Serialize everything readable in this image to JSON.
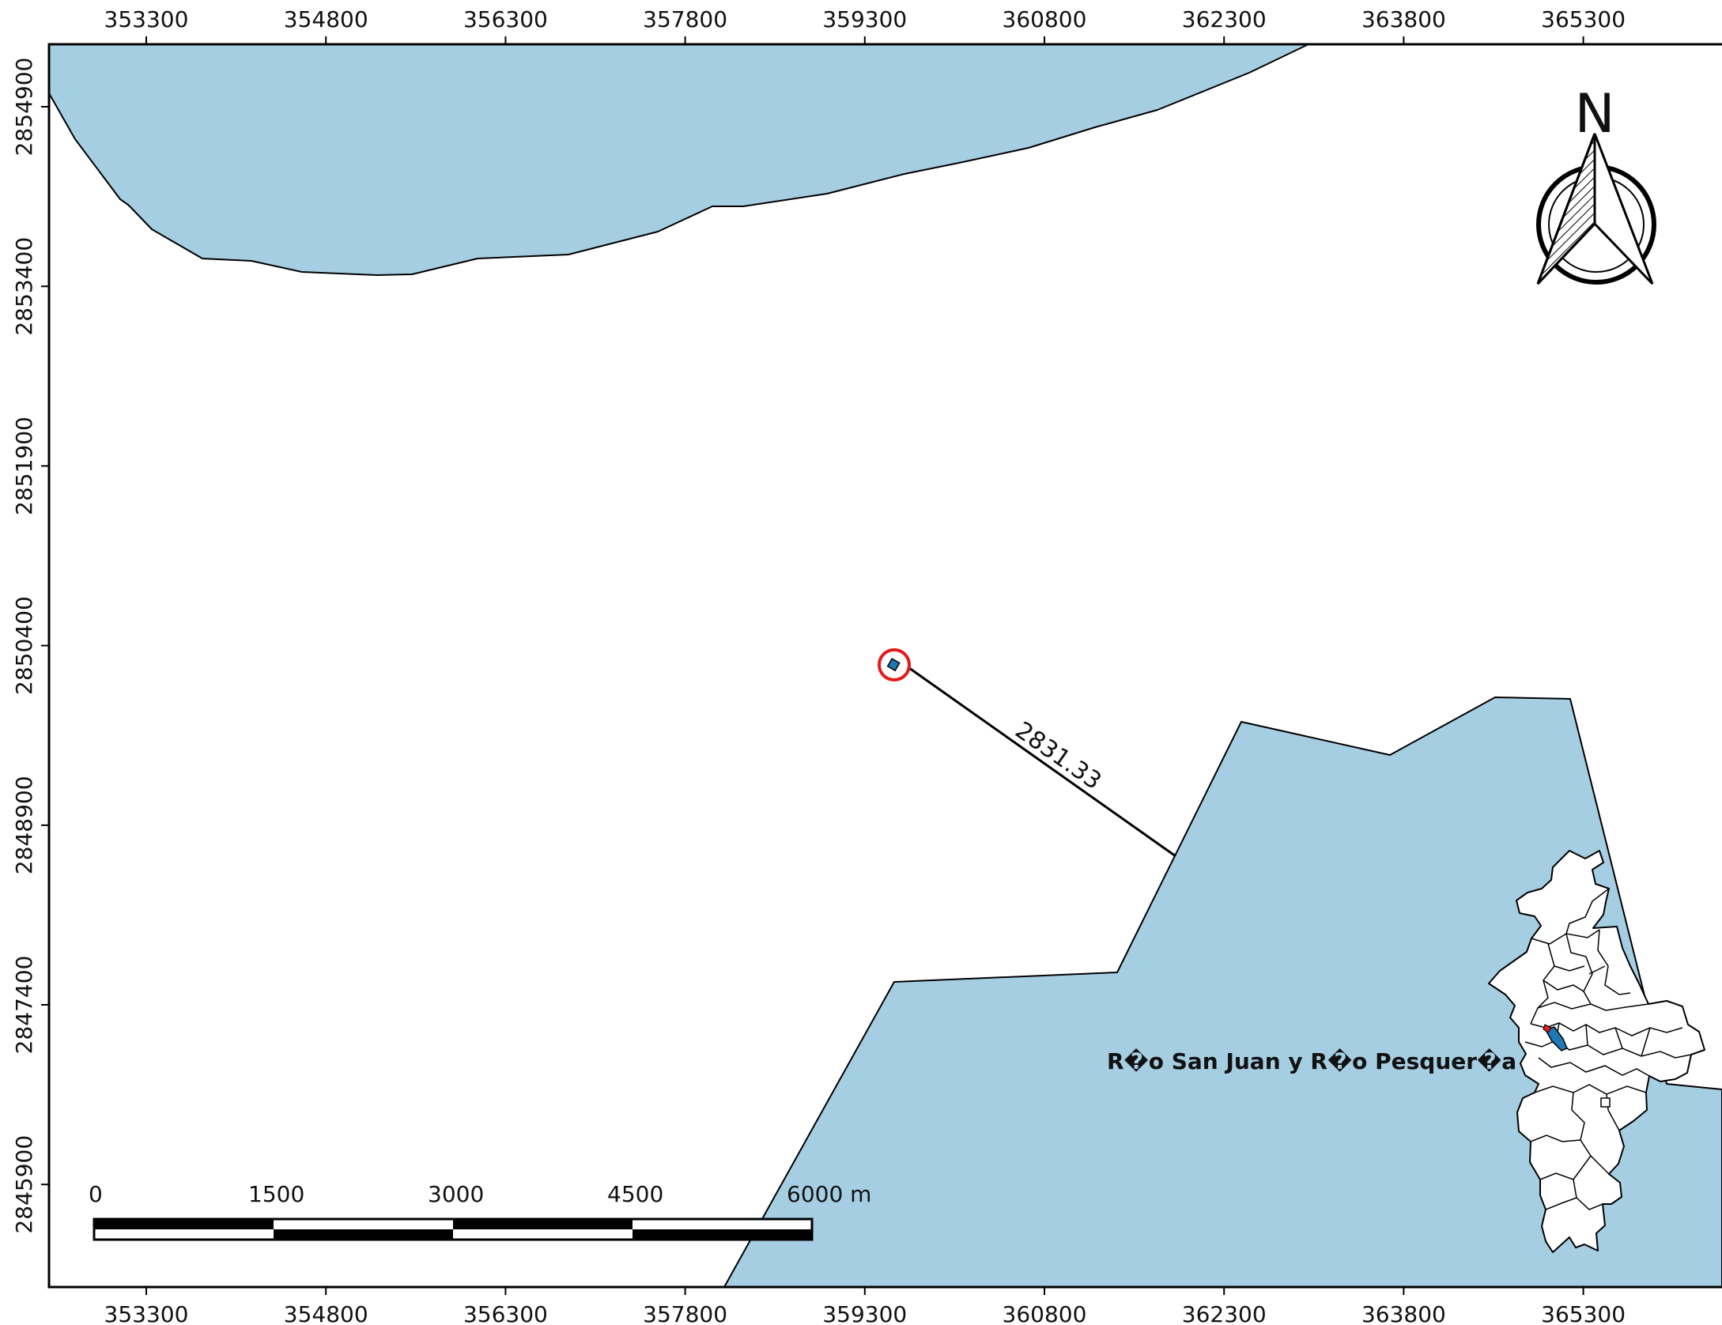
{
  "map": {
    "x_ticks": [
      "353300",
      "354800",
      "356300",
      "357800",
      "359300",
      "360800",
      "362300",
      "363800",
      "365300"
    ],
    "y_ticks": [
      "2854900",
      "2853400",
      "2851900",
      "2850400",
      "2848900",
      "2847400",
      "2845900"
    ],
    "north_arrow": {
      "label": "N",
      "icon": "north-arrow-icon"
    },
    "distance_label": "2831.33",
    "river_label": "R�o San Juan y R�o Pesquer�a",
    "scale_bar": {
      "labels": [
        "0",
        "1500",
        "3000",
        "4500",
        "6000 m"
      ]
    },
    "colors": {
      "water": "#a6cee3",
      "highlight_ring": "#e31a1c",
      "point": "#1f78b4",
      "frame": "#000000",
      "background": "#ffffff"
    }
  }
}
